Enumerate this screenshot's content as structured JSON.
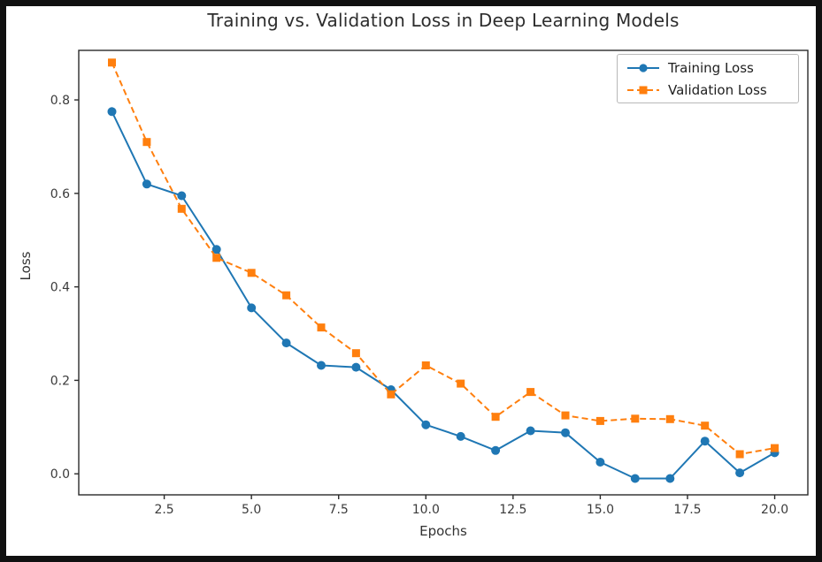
{
  "window": {
    "border_color": "#101010",
    "background_color": "#ffffff"
  },
  "chart_data": {
    "type": "line",
    "title": "Training vs. Validation Loss in Deep Learning Models",
    "xlabel": "Epochs",
    "ylabel": "Loss",
    "x": [
      1,
      2,
      3,
      4,
      5,
      6,
      7,
      8,
      9,
      10,
      11,
      12,
      13,
      14,
      15,
      16,
      17,
      18,
      19,
      20
    ],
    "series": [
      {
        "name": "Training Loss",
        "color": "#1f77b4",
        "line_style": "solid",
        "marker": "circle",
        "values": [
          0.775,
          0.62,
          0.595,
          0.48,
          0.355,
          0.28,
          0.232,
          0.228,
          0.18,
          0.105,
          0.08,
          0.05,
          0.092,
          0.088,
          0.025,
          -0.01,
          -0.01,
          0.07,
          0.002,
          0.045
        ]
      },
      {
        "name": "Validation Loss",
        "color": "#ff7f0e",
        "line_style": "dashed",
        "marker": "square",
        "values": [
          0.88,
          0.71,
          0.567,
          0.462,
          0.43,
          0.382,
          0.313,
          0.258,
          0.17,
          0.232,
          0.193,
          0.122,
          0.175,
          0.125,
          0.113,
          0.118,
          0.117,
          0.103,
          0.042,
          0.055
        ]
      }
    ],
    "xlim": [
      0.05,
      20.95
    ],
    "ylim": [
      -0.045,
      0.906
    ],
    "x_ticks": [
      2.5,
      5.0,
      7.5,
      10.0,
      12.5,
      15.0,
      17.5,
      20.0
    ],
    "x_tick_labels": [
      "2.5",
      "5.0",
      "7.5",
      "10.0",
      "12.5",
      "15.0",
      "17.5",
      "20.0"
    ],
    "y_ticks": [
      0.0,
      0.2,
      0.4,
      0.6,
      0.8
    ],
    "y_tick_labels": [
      "0.0",
      "0.2",
      "0.4",
      "0.6",
      "0.8"
    ],
    "grid": false,
    "legend_position": "upper right",
    "spine_color": "#2a2a2a",
    "tick_label_color": "#3b3b3b"
  }
}
